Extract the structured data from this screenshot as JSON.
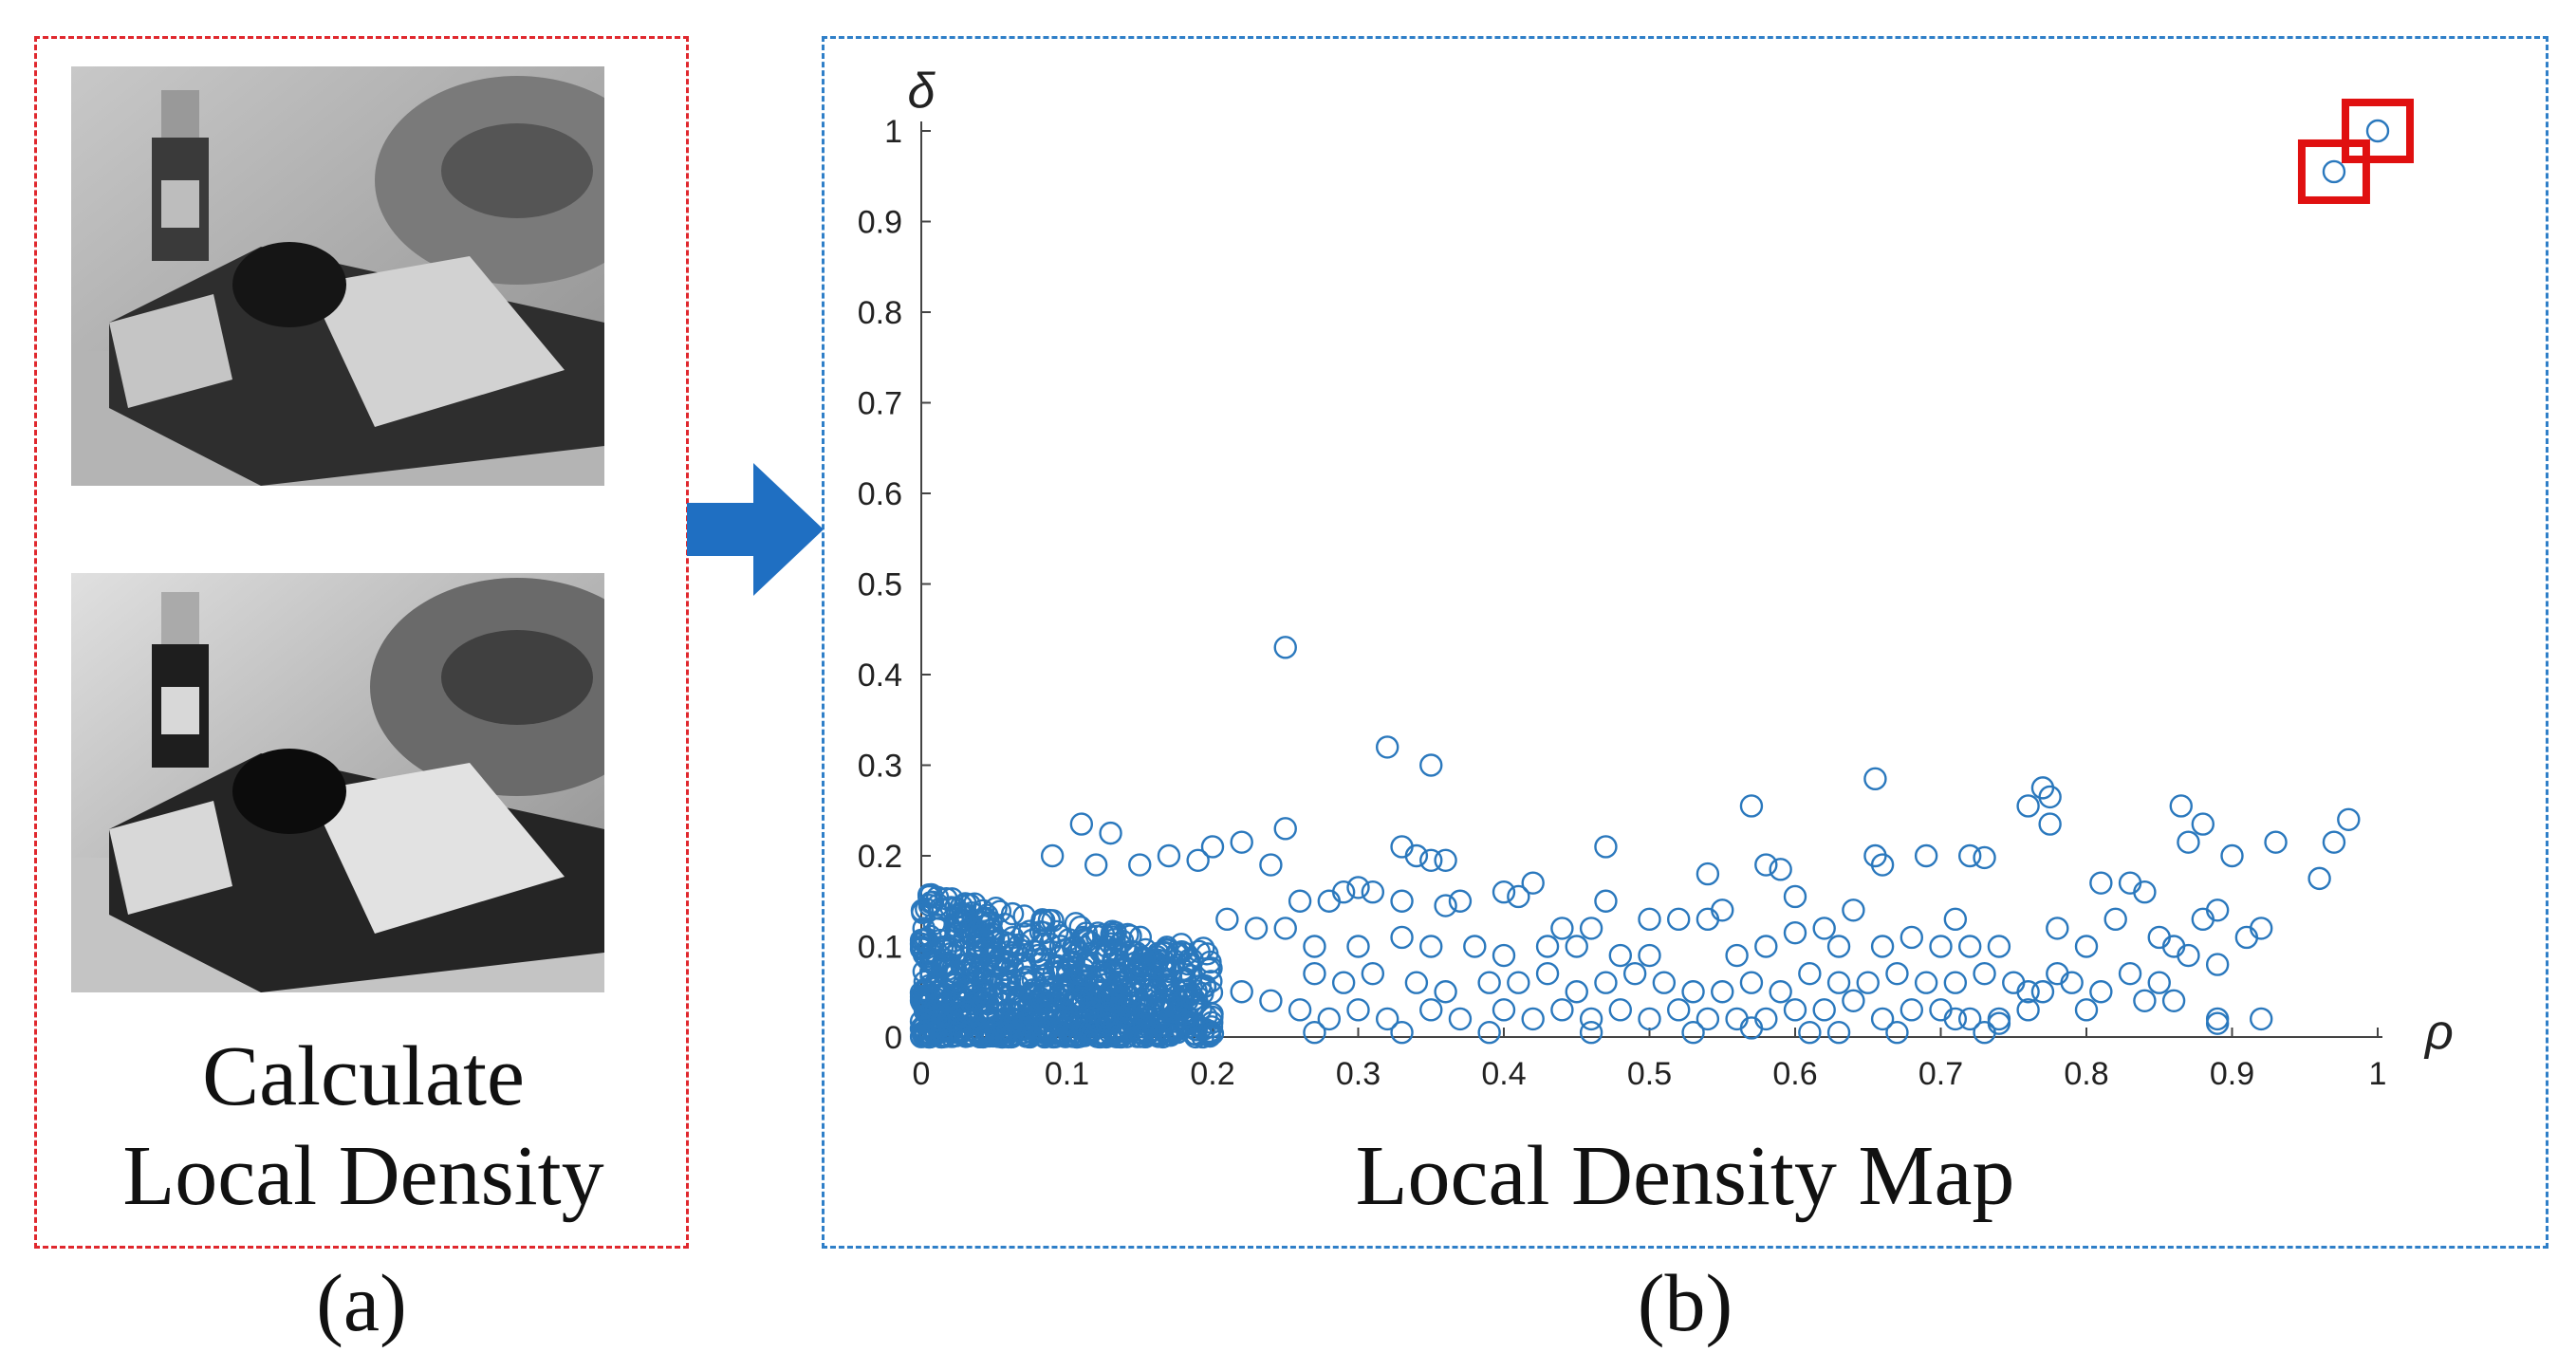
{
  "panel_a": {
    "caption_line1": "Calculate",
    "caption_line2": "Local Density",
    "label": "(a)",
    "images": [
      "original-image",
      "enhanced-image"
    ]
  },
  "panel_b": {
    "caption": "Local Density Map",
    "label": "(b)"
  },
  "colors": {
    "red_frame": "#e0282e",
    "blue_frame": "#2f7fc8",
    "marker": "#2a78bd",
    "highlight": "#e01010",
    "arrow": "#1f6fc2"
  },
  "chart_data": {
    "type": "scatter",
    "title": "",
    "xlabel": "ρ",
    "ylabel": "δ",
    "xlim": [
      0,
      1
    ],
    "ylim": [
      0,
      1
    ],
    "xticks": [
      "0",
      "0.1",
      "0.2",
      "0.3",
      "0.4",
      "0.5",
      "0.6",
      "0.7",
      "0.8",
      "0.9",
      "1"
    ],
    "yticks": [
      "0",
      "0.1",
      "0.2",
      "0.3",
      "0.4",
      "0.5",
      "0.6",
      "0.7",
      "0.8",
      "0.9",
      "1"
    ],
    "marker": "open-circle",
    "dense_cluster": {
      "x_range": [
        0,
        0.2
      ],
      "y_range": [
        0,
        0.16
      ],
      "approx_points": 900
    },
    "highlighted_points": [
      [
        0.97,
        0.955
      ],
      [
        1.0,
        1.0
      ]
    ],
    "points": [
      [
        0.25,
        0.43
      ],
      [
        0.32,
        0.32
      ],
      [
        0.35,
        0.3
      ],
      [
        0.655,
        0.285
      ],
      [
        0.77,
        0.275
      ],
      [
        0.775,
        0.265
      ],
      [
        0.76,
        0.255
      ],
      [
        0.57,
        0.255
      ],
      [
        0.775,
        0.235
      ],
      [
        0.98,
        0.24
      ],
      [
        0.865,
        0.255
      ],
      [
        0.25,
        0.23
      ],
      [
        0.11,
        0.235
      ],
      [
        0.13,
        0.225
      ],
      [
        0.33,
        0.21
      ],
      [
        0.47,
        0.21
      ],
      [
        0.88,
        0.235
      ],
      [
        0.97,
        0.215
      ],
      [
        0.93,
        0.215
      ],
      [
        0.87,
        0.215
      ],
      [
        0.9,
        0.2
      ],
      [
        0.96,
        0.175
      ],
      [
        0.655,
        0.2
      ],
      [
        0.69,
        0.2
      ],
      [
        0.72,
        0.2
      ],
      [
        0.73,
        0.198
      ],
      [
        0.66,
        0.19
      ],
      [
        0.58,
        0.19
      ],
      [
        0.59,
        0.185
      ],
      [
        0.54,
        0.18
      ],
      [
        0.81,
        0.17
      ],
      [
        0.83,
        0.17
      ],
      [
        0.84,
        0.16
      ],
      [
        0.34,
        0.2
      ],
      [
        0.35,
        0.195
      ],
      [
        0.36,
        0.195
      ],
      [
        0.24,
        0.19
      ],
      [
        0.22,
        0.215
      ],
      [
        0.2,
        0.21
      ],
      [
        0.17,
        0.2
      ],
      [
        0.19,
        0.195
      ],
      [
        0.15,
        0.19
      ],
      [
        0.12,
        0.19
      ],
      [
        0.09,
        0.2
      ],
      [
        0.42,
        0.17
      ],
      [
        0.4,
        0.16
      ],
      [
        0.41,
        0.155
      ],
      [
        0.47,
        0.15
      ],
      [
        0.29,
        0.16
      ],
      [
        0.3,
        0.165
      ],
      [
        0.31,
        0.16
      ],
      [
        0.28,
        0.15
      ],
      [
        0.33,
        0.15
      ],
      [
        0.36,
        0.145
      ],
      [
        0.37,
        0.15
      ],
      [
        0.26,
        0.15
      ],
      [
        0.64,
        0.14
      ],
      [
        0.6,
        0.155
      ],
      [
        0.55,
        0.14
      ],
      [
        0.54,
        0.13
      ],
      [
        0.52,
        0.13
      ],
      [
        0.5,
        0.13
      ],
      [
        0.44,
        0.12
      ],
      [
        0.46,
        0.12
      ],
      [
        0.62,
        0.12
      ],
      [
        0.6,
        0.115
      ],
      [
        0.71,
        0.13
      ],
      [
        0.68,
        0.11
      ],
      [
        0.7,
        0.1
      ],
      [
        0.72,
        0.1
      ],
      [
        0.74,
        0.1
      ],
      [
        0.78,
        0.12
      ],
      [
        0.8,
        0.1
      ],
      [
        0.82,
        0.13
      ],
      [
        0.86,
        0.1
      ],
      [
        0.88,
        0.13
      ],
      [
        0.89,
        0.14
      ],
      [
        0.91,
        0.11
      ],
      [
        0.92,
        0.12
      ],
      [
        0.85,
        0.11
      ],
      [
        0.66,
        0.1
      ],
      [
        0.63,
        0.1
      ],
      [
        0.58,
        0.1
      ],
      [
        0.56,
        0.09
      ],
      [
        0.5,
        0.09
      ],
      [
        0.48,
        0.09
      ],
      [
        0.45,
        0.1
      ],
      [
        0.43,
        0.1
      ],
      [
        0.4,
        0.09
      ],
      [
        0.38,
        0.1
      ],
      [
        0.35,
        0.1
      ],
      [
        0.33,
        0.11
      ],
      [
        0.3,
        0.1
      ],
      [
        0.27,
        0.1
      ],
      [
        0.25,
        0.12
      ],
      [
        0.23,
        0.12
      ],
      [
        0.21,
        0.13
      ],
      [
        0.27,
        0.07
      ],
      [
        0.29,
        0.06
      ],
      [
        0.31,
        0.07
      ],
      [
        0.34,
        0.06
      ],
      [
        0.36,
        0.05
      ],
      [
        0.39,
        0.06
      ],
      [
        0.41,
        0.06
      ],
      [
        0.43,
        0.07
      ],
      [
        0.45,
        0.05
      ],
      [
        0.47,
        0.06
      ],
      [
        0.49,
        0.07
      ],
      [
        0.51,
        0.06
      ],
      [
        0.53,
        0.05
      ],
      [
        0.55,
        0.05
      ],
      [
        0.57,
        0.06
      ],
      [
        0.59,
        0.05
      ],
      [
        0.61,
        0.07
      ],
      [
        0.63,
        0.06
      ],
      [
        0.65,
        0.06
      ],
      [
        0.67,
        0.07
      ],
      [
        0.69,
        0.06
      ],
      [
        0.71,
        0.06
      ],
      [
        0.73,
        0.07
      ],
      [
        0.75,
        0.06
      ],
      [
        0.77,
        0.05
      ],
      [
        0.79,
        0.06
      ],
      [
        0.81,
        0.05
      ],
      [
        0.83,
        0.07
      ],
      [
        0.85,
        0.06
      ],
      [
        0.87,
        0.09
      ],
      [
        0.89,
        0.08
      ],
      [
        0.78,
        0.07
      ],
      [
        0.76,
        0.05
      ],
      [
        0.64,
        0.04
      ],
      [
        0.62,
        0.03
      ],
      [
        0.6,
        0.03
      ],
      [
        0.58,
        0.02
      ],
      [
        0.56,
        0.02
      ],
      [
        0.54,
        0.02
      ],
      [
        0.52,
        0.03
      ],
      [
        0.5,
        0.02
      ],
      [
        0.48,
        0.03
      ],
      [
        0.46,
        0.02
      ],
      [
        0.44,
        0.03
      ],
      [
        0.42,
        0.02
      ],
      [
        0.4,
        0.03
      ],
      [
        0.37,
        0.02
      ],
      [
        0.35,
        0.03
      ],
      [
        0.32,
        0.02
      ],
      [
        0.3,
        0.03
      ],
      [
        0.28,
        0.02
      ],
      [
        0.26,
        0.03
      ],
      [
        0.24,
        0.04
      ],
      [
        0.22,
        0.05
      ],
      [
        0.66,
        0.02
      ],
      [
        0.68,
        0.03
      ],
      [
        0.7,
        0.03
      ],
      [
        0.72,
        0.02
      ],
      [
        0.74,
        0.02
      ],
      [
        0.76,
        0.03
      ],
      [
        0.8,
        0.03
      ],
      [
        0.84,
        0.04
      ],
      [
        0.89,
        0.02
      ],
      [
        0.92,
        0.02
      ],
      [
        0.89,
        0.015
      ],
      [
        0.86,
        0.04
      ],
      [
        0.57,
        0.01
      ],
      [
        0.61,
        0.005
      ],
      [
        0.63,
        0.005
      ],
      [
        0.67,
        0.005
      ],
      [
        0.39,
        0.005
      ],
      [
        0.33,
        0.005
      ],
      [
        0.27,
        0.005
      ],
      [
        0.46,
        0.005
      ],
      [
        0.53,
        0.005
      ],
      [
        0.73,
        0.005
      ],
      [
        0.74,
        0.015
      ],
      [
        0.71,
        0.02
      ]
    ]
  }
}
